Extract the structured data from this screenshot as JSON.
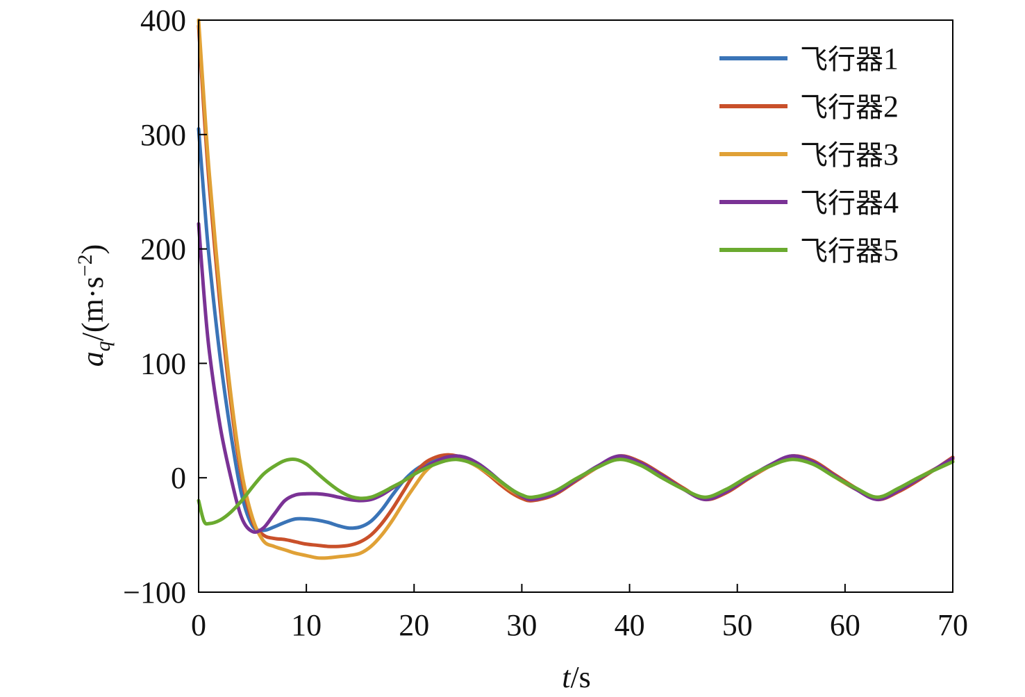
{
  "chart_data": {
    "type": "line",
    "title": "",
    "xlabel_main": "t",
    "xlabel_unit": "/s",
    "ylabel_var": "a",
    "ylabel_sub": "q",
    "ylabel_unit": "/(m·s",
    "ylabel_exp": "−2",
    "ylabel_close": ")",
    "xlim": [
      0,
      70
    ],
    "ylim": [
      -100,
      400
    ],
    "xticks": [
      0,
      10,
      20,
      30,
      40,
      50,
      60,
      70
    ],
    "yticks": [
      -100,
      0,
      100,
      200,
      300,
      400
    ],
    "xtick_labels": [
      "0",
      "10",
      "20",
      "30",
      "40",
      "50",
      "60",
      "70"
    ],
    "ytick_labels": [
      "−100",
      "0",
      "100",
      "200",
      "300",
      "400"
    ],
    "grid": false,
    "legend_position": "top-right",
    "series": [
      {
        "name": "飞行器1",
        "name_text": "飞行器",
        "name_num": "1",
        "color": "#3a74b7",
        "x": [
          0,
          0.5,
          1,
          2,
          3,
          4,
          5,
          6,
          7,
          8,
          9,
          10,
          11,
          12,
          13,
          14,
          15,
          16,
          17,
          18,
          19,
          20,
          21,
          22,
          23,
          24,
          25,
          26,
          27,
          28,
          29,
          30,
          31,
          33,
          35,
          37,
          39,
          41,
          43,
          45,
          47,
          49,
          51,
          53,
          55,
          57,
          59,
          61,
          63,
          65,
          67,
          70
        ],
        "y": [
          305,
          245,
          190,
          105,
          38,
          -15,
          -42,
          -46,
          -43,
          -39,
          -36,
          -36,
          -37,
          -39,
          -42,
          -44,
          -43,
          -38,
          -28,
          -15,
          -3,
          6,
          12,
          16,
          18,
          19,
          17,
          12,
          5,
          -3,
          -10,
          -16,
          -19,
          -14,
          -2,
          10,
          18,
          13,
          2,
          -10,
          -18,
          -12,
          0,
          11,
          18,
          14,
          2,
          -10,
          -18,
          -11,
          0,
          16
        ]
      },
      {
        "name": "飞行器2",
        "name_text": "飞行器",
        "name_num": "2",
        "color": "#c9502a",
        "x": [
          0,
          0.5,
          1,
          2,
          3,
          4,
          5,
          6,
          7,
          8,
          9,
          10,
          11,
          12,
          13,
          14,
          15,
          16,
          17,
          18,
          19,
          20,
          21,
          22,
          23,
          24,
          25,
          26,
          27,
          28,
          29,
          30,
          31,
          33,
          35,
          37,
          39,
          41,
          43,
          45,
          47,
          49,
          51,
          53,
          55,
          57,
          59,
          61,
          63,
          65,
          67,
          70
        ],
        "y": [
          395,
          320,
          255,
          150,
          65,
          0,
          -38,
          -50,
          -53,
          -54,
          -56,
          -58,
          -59,
          -60,
          -60,
          -59,
          -56,
          -50,
          -40,
          -27,
          -12,
          3,
          13,
          18,
          20,
          19,
          15,
          9,
          2,
          -6,
          -13,
          -18,
          -20,
          -15,
          -3,
          9,
          19,
          14,
          3,
          -9,
          -19,
          -13,
          -1,
          10,
          19,
          15,
          3,
          -9,
          -19,
          -12,
          -1,
          18
        ]
      },
      {
        "name": "飞行器3",
        "name_text": "飞行器",
        "name_num": "3",
        "color": "#e0a136",
        "x": [
          0,
          0.5,
          1,
          2,
          3,
          4,
          5,
          6,
          7,
          8,
          9,
          10,
          11,
          12,
          13,
          14,
          15,
          16,
          17,
          18,
          19,
          20,
          21,
          22,
          23,
          24,
          25,
          26,
          27,
          28,
          29,
          30,
          31,
          33,
          35,
          37,
          39,
          41,
          43,
          45,
          47,
          49,
          51,
          53,
          55,
          57,
          59,
          61,
          63,
          65,
          67,
          70
        ],
        "y": [
          400,
          330,
          265,
          160,
          72,
          5,
          -35,
          -55,
          -60,
          -63,
          -66,
          -68,
          -70,
          -70,
          -69,
          -68,
          -66,
          -60,
          -50,
          -37,
          -22,
          -8,
          5,
          13,
          17,
          17,
          14,
          9,
          3,
          -4,
          -11,
          -16,
          -18,
          -13,
          -2,
          9,
          17,
          12,
          1,
          -10,
          -18,
          -11,
          0,
          10,
          17,
          13,
          1,
          -10,
          -17,
          -10,
          1,
          16
        ]
      },
      {
        "name": "飞行器4",
        "name_text": "飞行器",
        "name_num": "4",
        "color": "#7a3295",
        "x": [
          0,
          0.5,
          1,
          2,
          3,
          4,
          5,
          6,
          7,
          8,
          9,
          10,
          11,
          12,
          13,
          14,
          15,
          16,
          17,
          18,
          19,
          20,
          21,
          22,
          23,
          24,
          25,
          26,
          27,
          28,
          29,
          30,
          31,
          33,
          35,
          37,
          39,
          41,
          43,
          45,
          47,
          49,
          51,
          53,
          55,
          57,
          59,
          61,
          63,
          65,
          67,
          70
        ],
        "y": [
          222,
          160,
          110,
          45,
          0,
          -35,
          -47,
          -44,
          -32,
          -20,
          -15,
          -14,
          -14,
          -15,
          -17,
          -19,
          -20,
          -19,
          -15,
          -9,
          -3,
          3,
          9,
          14,
          18,
          19,
          17,
          12,
          5,
          -3,
          -10,
          -16,
          -19,
          -14,
          -2,
          10,
          19,
          13,
          2,
          -10,
          -19,
          -12,
          0,
          11,
          19,
          14,
          2,
          -10,
          -19,
          -11,
          0,
          17
        ]
      },
      {
        "name": "飞行器5",
        "name_text": "飞行器",
        "name_num": "5",
        "color": "#6aaa2f",
        "x": [
          0,
          0.5,
          1,
          2,
          3,
          4,
          5,
          6,
          7,
          8,
          9,
          10,
          11,
          12,
          13,
          14,
          15,
          16,
          17,
          18,
          19,
          20,
          21,
          22,
          23,
          24,
          25,
          26,
          27,
          28,
          29,
          30,
          31,
          33,
          35,
          37,
          39,
          41,
          43,
          45,
          47,
          49,
          51,
          53,
          55,
          57,
          59,
          61,
          63,
          65,
          67,
          70
        ],
        "y": [
          -20,
          -38,
          -40,
          -37,
          -30,
          -20,
          -8,
          3,
          10,
          15,
          16,
          12,
          4,
          -4,
          -11,
          -16,
          -18,
          -17,
          -13,
          -8,
          -3,
          3,
          8,
          12,
          15,
          16,
          14,
          10,
          4,
          -3,
          -10,
          -15,
          -17,
          -12,
          -1,
          9,
          16,
          11,
          0,
          -10,
          -17,
          -10,
          1,
          10,
          16,
          12,
          1,
          -9,
          -17,
          -9,
          1,
          14
        ]
      }
    ]
  }
}
